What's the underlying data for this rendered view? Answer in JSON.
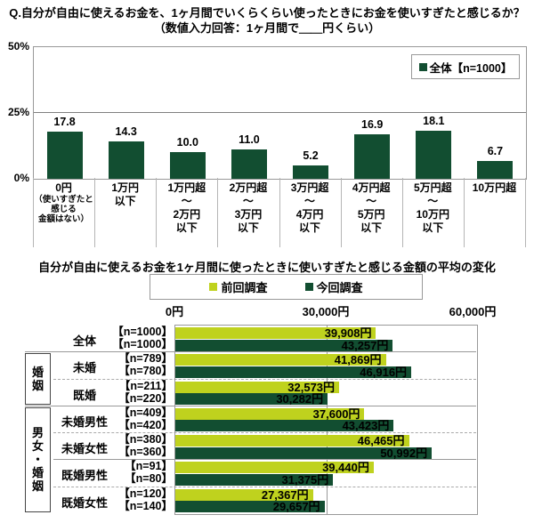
{
  "colors": {
    "bar_dark_green": "#124e31",
    "bar_light_green": "#bfd21e",
    "axis_border": "#999999",
    "separator": "#aaaaaa"
  },
  "chart_data": [
    {
      "type": "bar",
      "title": "Q.自分が自由に使えるお金を、1ヶ月間でいくらくらい使ったときにお金を使いすぎたと感じるか？",
      "subtitle": "（数値入力回答：1ヶ月間で＿＿円くらい）",
      "legend": [
        {
          "name": "全体【n=1000】",
          "color": "#124e31"
        }
      ],
      "legend_position": "top-right",
      "ylim": [
        0,
        50
      ],
      "y_ticks": [
        "0%",
        "25%",
        "50%"
      ],
      "gridlines_y": [
        25
      ],
      "categories": [
        [
          "0円",
          "（使いすぎたと",
          "感じる",
          "金額はない）"
        ],
        [
          "1万円",
          "以下"
        ],
        [
          "1万円超",
          "～",
          "2万円",
          "以下"
        ],
        [
          "2万円超",
          "～",
          "3万円",
          "以下"
        ],
        [
          "3万円超",
          "～",
          "4万円",
          "以下"
        ],
        [
          "4万円超",
          "～",
          "5万円",
          "以下"
        ],
        [
          "5万円超",
          "～",
          "10万円",
          "以下"
        ],
        [
          "10万円超"
        ]
      ],
      "values": [
        17.8,
        14.3,
        10.0,
        11.0,
        5.2,
        16.9,
        18.1,
        6.7
      ],
      "value_labels": [
        "17.8",
        "14.3",
        "10.0",
        "11.0",
        "5.2",
        "16.9",
        "18.1",
        "6.7"
      ]
    },
    {
      "type": "bar",
      "orientation": "horizontal",
      "title": "自分が自由に使えるお金を1ヶ月間に使ったときに使いすぎたと感じる金額の平均の変化",
      "series": [
        {
          "name": "前回調査",
          "color": "#bfd21e"
        },
        {
          "name": "今回調査",
          "color": "#124e31"
        }
      ],
      "xlim": [
        0,
        60000
      ],
      "x_ticks": [
        "0円",
        "30,000円",
        "60,000円"
      ],
      "gridlines_x": [
        30000
      ],
      "groups": [
        {
          "label": "",
          "start_row": 0,
          "end_row": 0
        },
        {
          "label": "婚姻",
          "start_row": 1,
          "end_row": 2
        },
        {
          "label": "男女・婚姻",
          "start_row": 3,
          "end_row": 6
        }
      ],
      "rows": [
        {
          "label": "全体",
          "n_prev": "【n=1000】",
          "n_curr": "【n=1000】",
          "prev": 39908,
          "curr": 43257,
          "prev_label": "39,908円",
          "curr_label": "43,257円"
        },
        {
          "label": "未婚",
          "n_prev": "【n=789】",
          "n_curr": "【n=780】",
          "prev": 41869,
          "curr": 46916,
          "prev_label": "41,869円",
          "curr_label": "46,916円"
        },
        {
          "label": "既婚",
          "n_prev": "【n=211】",
          "n_curr": "【n=220】",
          "prev": 32573,
          "curr": 30282,
          "prev_label": "32,573円",
          "curr_label": "30,282円"
        },
        {
          "label": "未婚男性",
          "n_prev": "【n=409】",
          "n_curr": "【n=420】",
          "prev": 37600,
          "curr": 43423,
          "prev_label": "37,600円",
          "curr_label": "43,423円"
        },
        {
          "label": "未婚女性",
          "n_prev": "【n=380】",
          "n_curr": "【n=360】",
          "prev": 46465,
          "curr": 50992,
          "prev_label": "46,465円",
          "curr_label": "50,992円"
        },
        {
          "label": "既婚男性",
          "n_prev": "【n=91】",
          "n_curr": "【n=80】",
          "prev": 39440,
          "curr": 31375,
          "prev_label": "39,440円",
          "curr_label": "31,375円"
        },
        {
          "label": "既婚女性",
          "n_prev": "【n=120】",
          "n_curr": "【n=140】",
          "prev": 27367,
          "curr": 29657,
          "prev_label": "27,367円",
          "curr_label": "29,657円"
        }
      ],
      "row_separators": [
        "solid",
        "dashed",
        "solid",
        "dashed",
        "solid",
        "dashed"
      ]
    }
  ]
}
